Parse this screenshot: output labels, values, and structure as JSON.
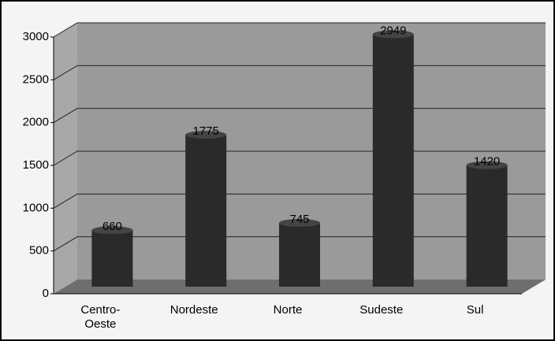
{
  "chart_data": {
    "type": "bar",
    "categories": [
      "Centro-Oeste",
      "Nordeste",
      "Norte",
      "Sudeste",
      "Sul"
    ],
    "values": [
      660,
      1775,
      745,
      2949,
      1420
    ],
    "color": "#2a2a2a",
    "ylim": [
      0,
      3000
    ],
    "yticks": [
      0,
      500,
      1000,
      1500,
      2000,
      2500,
      3000
    ],
    "grid": true
  }
}
